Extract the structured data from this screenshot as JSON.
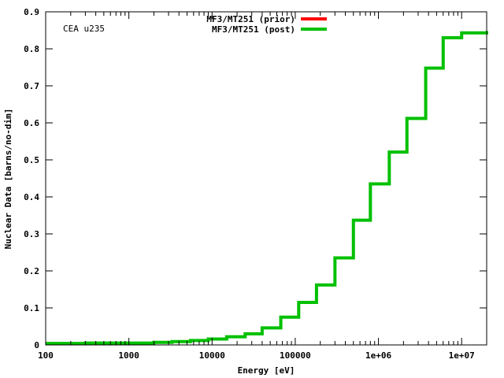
{
  "chart_data": {
    "type": "line",
    "step": "post",
    "title": "",
    "annotation": "CEA u235",
    "xlabel": "Energy [eV]",
    "ylabel": "Nuclear Data [barns/no-dim]",
    "xscale": "log",
    "xlim": [
      100,
      20000000
    ],
    "ylim": [
      0,
      0.9
    ],
    "grid": false,
    "legend_position": "top-center",
    "x_ticks": [
      {
        "value": 100,
        "label": "100"
      },
      {
        "value": 1000,
        "label": "1000"
      },
      {
        "value": 10000,
        "label": "10000"
      },
      {
        "value": 100000,
        "label": "100000"
      },
      {
        "value": 1000000,
        "label": "1e+06"
      },
      {
        "value": 10000000,
        "label": "1e+07"
      }
    ],
    "y_ticks": [
      {
        "value": 0,
        "label": "0"
      },
      {
        "value": 0.1,
        "label": "0.1"
      },
      {
        "value": 0.2,
        "label": "0.2"
      },
      {
        "value": 0.3,
        "label": "0.3"
      },
      {
        "value": 0.4,
        "label": "0.4"
      },
      {
        "value": 0.5,
        "label": "0.5"
      },
      {
        "value": 0.6,
        "label": "0.6"
      },
      {
        "value": 0.7,
        "label": "0.7"
      },
      {
        "value": 0.8,
        "label": "0.8"
      },
      {
        "value": 0.9,
        "label": "0.9"
      }
    ],
    "series": [
      {
        "name": "MF3/MT251 (prior)",
        "color": "#ff0000",
        "x": [],
        "y": []
      },
      {
        "name": "MF3/MT251 (post)",
        "color": "#00c000",
        "x": [
          100,
          300,
          2000,
          3300,
          5500,
          9000,
          15000,
          25000,
          40000,
          67000,
          110000,
          180000,
          300000,
          500000,
          800000,
          1350000,
          2200000,
          3700000,
          6000000,
          10000000,
          20000000
        ],
        "y": [
          0.004,
          0.005,
          0.007,
          0.009,
          0.012,
          0.016,
          0.022,
          0.03,
          0.046,
          0.075,
          0.115,
          0.162,
          0.235,
          0.337,
          0.435,
          0.521,
          0.612,
          0.748,
          0.83,
          0.843,
          0.848
        ]
      }
    ]
  }
}
